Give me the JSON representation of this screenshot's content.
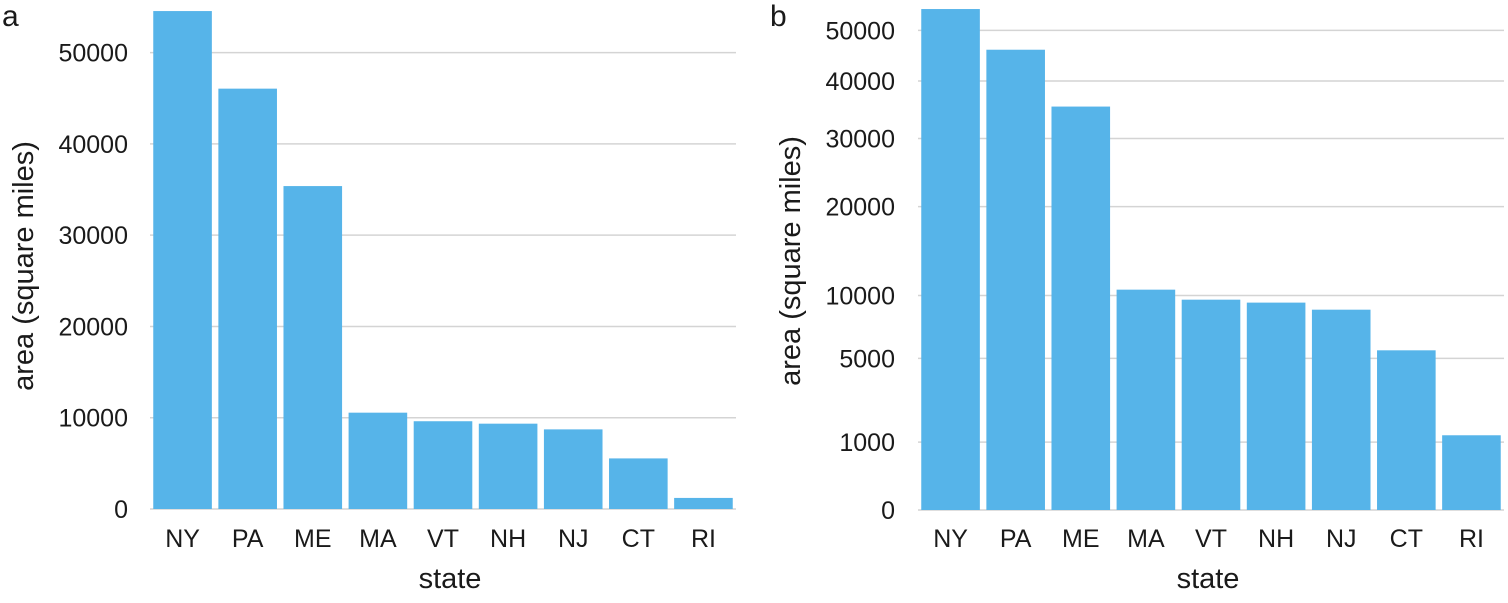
{
  "chart_data": [
    {
      "panel_label": "a",
      "type": "bar",
      "title": "",
      "xlabel": "state",
      "ylabel": "area (square miles)",
      "scale": "linear",
      "categories": [
        "NY",
        "PA",
        "ME",
        "MA",
        "VT",
        "NH",
        "NJ",
        "CT",
        "RI"
      ],
      "values": [
        54555,
        46054,
        35380,
        10554,
        9616,
        9349,
        8723,
        5543,
        1214
      ],
      "ylim": [
        0,
        55000
      ],
      "yticks": [
        0,
        10000,
        20000,
        30000,
        40000,
        50000
      ],
      "ytick_labels": [
        "0",
        "10000",
        "20000",
        "30000",
        "40000",
        "50000"
      ],
      "grid": "horizontal",
      "bar_color": "#56b4e9"
    },
    {
      "panel_label": "b",
      "type": "bar",
      "title": "",
      "xlabel": "state",
      "ylabel": "area (square miles)",
      "scale": "sqrt",
      "categories": [
        "NY",
        "PA",
        "ME",
        "MA",
        "VT",
        "NH",
        "NJ",
        "CT",
        "RI"
      ],
      "values": [
        54555,
        46054,
        35380,
        10554,
        9616,
        9349,
        8723,
        5543,
        1214
      ],
      "ylim": [
        0,
        55000
      ],
      "yticks": [
        0,
        1000,
        5000,
        10000,
        20000,
        30000,
        40000,
        50000
      ],
      "ytick_labels": [
        "0",
        "1000",
        "5000",
        "10000",
        "20000",
        "30000",
        "40000",
        "50000"
      ],
      "grid": "horizontal",
      "bar_color": "#56b4e9"
    }
  ]
}
